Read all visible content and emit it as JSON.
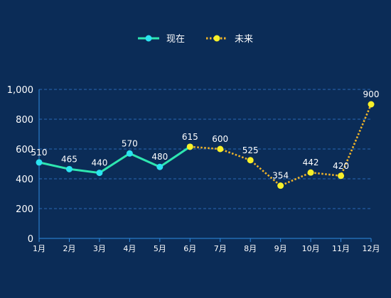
{
  "chart_data": {
    "type": "line",
    "categories": [
      "1月",
      "2月",
      "3月",
      "4月",
      "5月",
      "6月",
      "7月",
      "8月",
      "9月",
      "10月",
      "11月",
      "12月"
    ],
    "series": [
      {
        "name": "现在",
        "color": "#2ee6b0",
        "marker_color": "#2be3f0",
        "line_style": "solid",
        "values": [
          510,
          465,
          440,
          570,
          480,
          615,
          null,
          null,
          null,
          null,
          null,
          null
        ]
      },
      {
        "name": "未来",
        "color": "#f0b429",
        "marker_color": "#f7f029",
        "line_style": "dotted",
        "values": [
          null,
          null,
          null,
          null,
          null,
          615,
          600,
          525,
          354,
          442,
          420,
          900
        ]
      }
    ],
    "y_ticks": [
      "0",
      "200",
      "400",
      "600",
      "800",
      "1,000"
    ],
    "ylim": [
      0,
      1000
    ],
    "grid": true,
    "legend_position": "top-center",
    "axis_color": "#2f8be0",
    "grid_color": "#2868b5"
  }
}
